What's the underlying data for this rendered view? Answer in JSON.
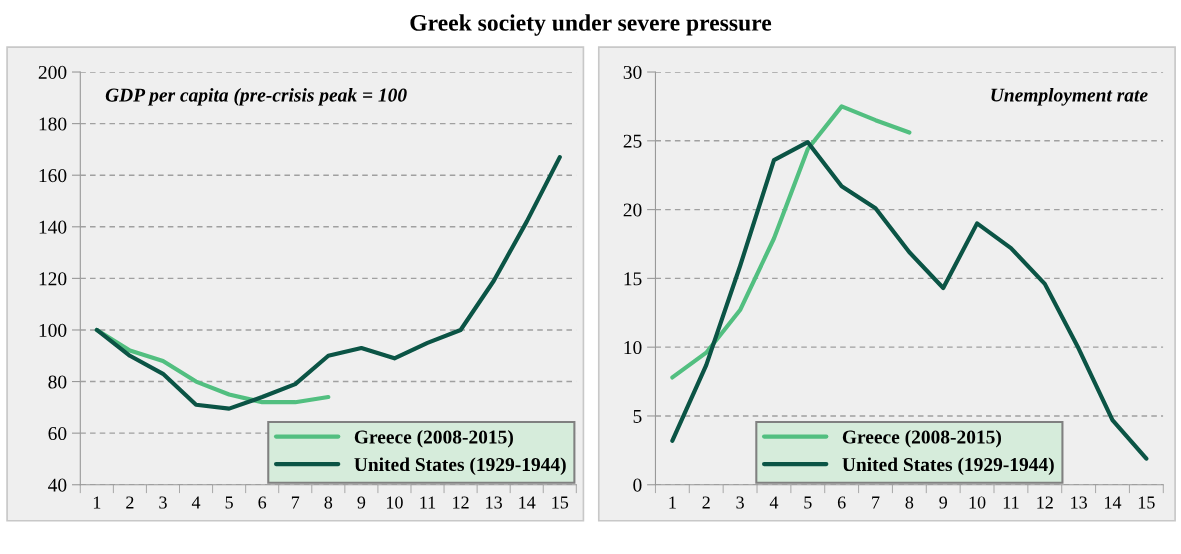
{
  "chart_data": [
    {
      "type": "line",
      "title": "Greek society under severe pressure",
      "annotations": [
        "GDP per capita (pre-crisis peak = 100"
      ],
      "categories": [
        "1",
        "2",
        "3",
        "4",
        "5",
        "6",
        "7",
        "8",
        "9",
        "10",
        "11",
        "12",
        "13",
        "14",
        "15"
      ],
      "series": [
        {
          "name": "Greece (2008-2015)",
          "color": "#52bf80",
          "values": [
            100,
            92,
            88,
            80,
            75,
            72,
            72,
            74,
            null,
            null,
            null,
            null,
            null,
            null,
            null
          ]
        },
        {
          "name": "United States (1929-1944)",
          "color": "#0b5445",
          "values": [
            100,
            90,
            83,
            71,
            69.5,
            74,
            79,
            90,
            93,
            89,
            95,
            100,
            119,
            142,
            167
          ]
        }
      ],
      "ylim": [
        40,
        200
      ],
      "yticks": [
        40,
        60,
        80,
        100,
        120,
        140,
        160,
        180,
        200
      ],
      "grid": "y",
      "legend": "bottom right"
    },
    {
      "type": "line",
      "annotations": [
        "Unemployment rate"
      ],
      "categories": [
        "1",
        "2",
        "3",
        "4",
        "5",
        "6",
        "7",
        "8",
        "9",
        "10",
        "11",
        "12",
        "13",
        "14",
        "15"
      ],
      "series": [
        {
          "name": "Greece (2008-2015)",
          "color": "#52bf80",
          "values": [
            7.8,
            9.6,
            12.7,
            17.9,
            24.4,
            27.5,
            26.5,
            25.6,
            null,
            null,
            null,
            null,
            null,
            null,
            null
          ]
        },
        {
          "name": "United States (1929-1944)",
          "color": "#0b5445",
          "values": [
            3.2,
            8.7,
            15.9,
            23.6,
            24.9,
            21.7,
            20.1,
            16.9,
            14.3,
            19.0,
            17.2,
            14.6,
            9.9,
            4.7,
            1.9
          ]
        }
      ],
      "ylim": [
        0,
        30
      ],
      "yticks": [
        0,
        5,
        10,
        15,
        20,
        25,
        30
      ],
      "grid": "y",
      "legend": "bottom"
    }
  ]
}
